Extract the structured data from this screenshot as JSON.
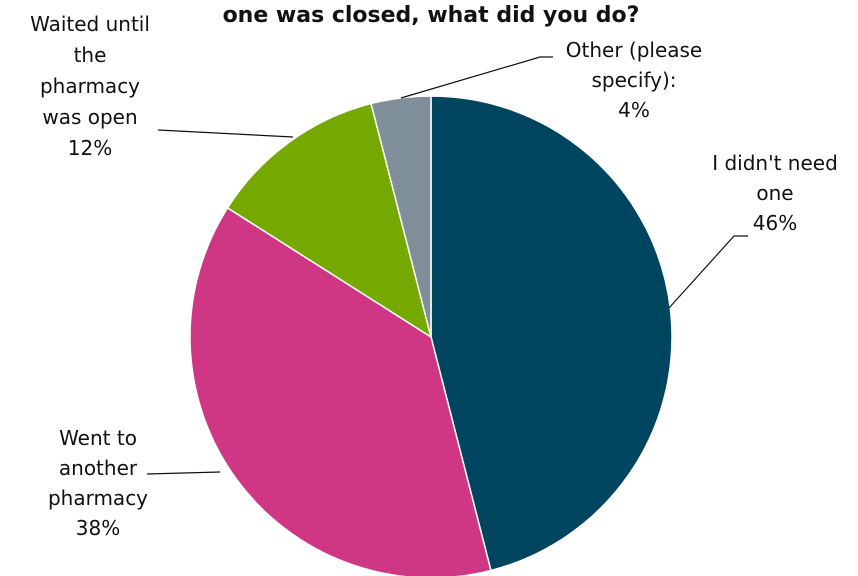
{
  "chart_data": {
    "type": "pie",
    "title": "one was closed, what did you do?",
    "start_angle_deg": 0,
    "direction": "clockwise",
    "slices": [
      {
        "label_lines": [
          "I didn't need",
          "one"
        ],
        "value": 46,
        "value_label": "46%",
        "color": "#004560"
      },
      {
        "label_lines": [
          "Went to",
          "another",
          "pharmacy"
        ],
        "value": 38,
        "value_label": "38%",
        "color": "#CF3785"
      },
      {
        "label_lines": [
          "Waited until",
          "the",
          "pharmacy",
          "was open"
        ],
        "value": 12,
        "value_label": "12%",
        "color": "#76A900"
      },
      {
        "label_lines": [
          "Other (please",
          "specify):"
        ],
        "value": 4,
        "value_label": "4%",
        "color": "#7F8F99"
      }
    ]
  }
}
